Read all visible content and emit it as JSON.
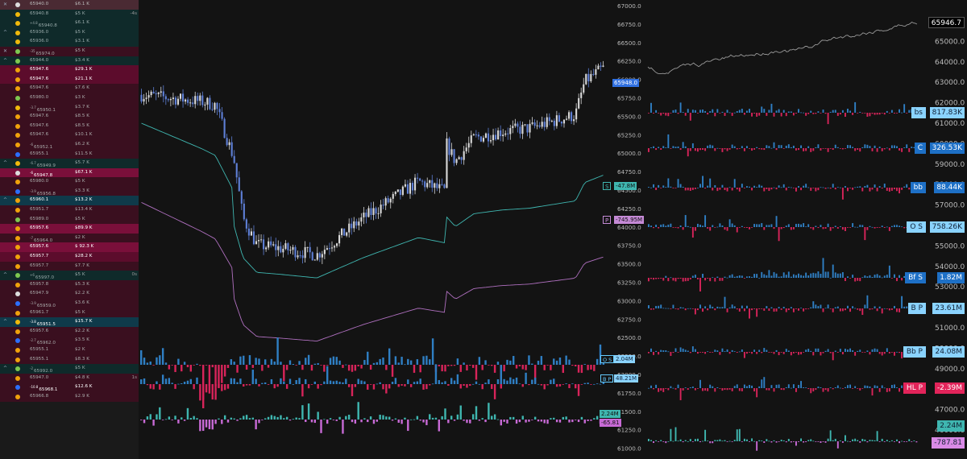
{
  "tape": {
    "rows": [
      {
        "chev": "✕",
        "icon": "x",
        "price": "65940.0",
        "size": "$6.1 K",
        "tag": "",
        "lev": "",
        "bg": "#4a2a33",
        "col": "#bbb"
      },
      {
        "chev": "",
        "icon": "coin",
        "price": "65940.8",
        "size": "$5 K",
        "tag": "-4s",
        "lev": "",
        "bg": "#0f2a2a",
        "col": "#9aa"
      },
      {
        "chev": "",
        "icon": "coin",
        "price": "65940.8",
        "size": "$6.1 K",
        "tag": "",
        "lev": "+4.8",
        "bg": "#0f2a2a",
        "col": "#9aa"
      },
      {
        "chev": "^",
        "icon": "coin",
        "price": "65936.0",
        "size": "$5 K",
        "tag": "",
        "lev": "",
        "bg": "#0f2a2a",
        "col": "#9aa"
      },
      {
        "chev": "",
        "icon": "coin",
        "price": "65936.0",
        "size": "$3.1 K",
        "tag": "",
        "lev": "",
        "bg": "#0f2a2a",
        "col": "#9aa"
      },
      {
        "chev": "✕",
        "icon": "leaf",
        "price": "65974.0",
        "size": "$5 K",
        "tag": "",
        "lev": "-35",
        "bg": "#3a0f1f",
        "col": "#aaa"
      },
      {
        "chev": "^",
        "icon": "leaf",
        "price": "65944.0",
        "size": "$3.4 K",
        "tag": "",
        "lev": "",
        "bg": "#0f2a2a",
        "col": "#9aa"
      },
      {
        "chev": "",
        "icon": "bin",
        "price": "65947.6",
        "size": "$29.1 K",
        "tag": "",
        "lev": "",
        "bg": "#5c0c2c",
        "col": "#fff"
      },
      {
        "chev": "",
        "icon": "bin",
        "price": "65947.6",
        "size": "$21.1 K",
        "tag": "",
        "lev": "",
        "bg": "#5c0c2c",
        "col": "#fff"
      },
      {
        "chev": "",
        "icon": "bin",
        "price": "65947.6",
        "size": "$7.6 K",
        "tag": "",
        "lev": "",
        "bg": "#3a0f1f",
        "col": "#aaa"
      },
      {
        "chev": "",
        "icon": "leaf",
        "price": "65980.0",
        "size": "$3 K",
        "tag": "",
        "lev": "",
        "bg": "#3a0f1f",
        "col": "#aaa"
      },
      {
        "chev": "",
        "icon": "coin",
        "price": "65950.1",
        "size": "$3.7 K",
        "tag": "",
        "lev": "-3.7",
        "bg": "#3a0f1f",
        "col": "#aaa"
      },
      {
        "chev": "",
        "icon": "bin",
        "price": "65947.6",
        "size": "$8.5 K",
        "tag": "",
        "lev": "",
        "bg": "#3a0f1f",
        "col": "#aaa"
      },
      {
        "chev": "",
        "icon": "bin",
        "price": "65947.6",
        "size": "$8.5 K",
        "tag": "",
        "lev": "",
        "bg": "#3a0f1f",
        "col": "#aaa"
      },
      {
        "chev": "",
        "icon": "bin",
        "price": "65947.6",
        "size": "$10.1 K",
        "tag": "",
        "lev": "",
        "bg": "#3a0f1f",
        "col": "#aaa"
      },
      {
        "chev": "",
        "icon": "bin",
        "price": "65952.1",
        "size": "$6.2 K",
        "tag": "",
        "lev": "-6",
        "bg": "#3a0f1f",
        "col": "#aaa"
      },
      {
        "chev": "",
        "icon": "cb",
        "price": "65955.1",
        "size": "$11.5 K",
        "tag": "",
        "lev": "",
        "bg": "#3a0f1f",
        "col": "#aaa"
      },
      {
        "chev": "^",
        "icon": "coin",
        "price": "65949.9",
        "size": "$5.7 K",
        "tag": "",
        "lev": "-6.7",
        "bg": "#0f2a2a",
        "col": "#9aa"
      },
      {
        "chev": "",
        "icon": "x",
        "price": "65947.8",
        "size": "$67.1 K",
        "tag": "",
        "lev": "-6",
        "bg": "#7a0f3a",
        "col": "#fff"
      },
      {
        "chev": "",
        "icon": "bin",
        "price": "65980.0",
        "size": "$5 K",
        "tag": "",
        "lev": "",
        "bg": "#3a0f1f",
        "col": "#aaa"
      },
      {
        "chev": "",
        "icon": "cb",
        "price": "65956.8",
        "size": "$3.3 K",
        "tag": "",
        "lev": "-3.9",
        "bg": "#3a0f1f",
        "col": "#aaa"
      },
      {
        "chev": "^",
        "icon": "bin",
        "price": "65960.1",
        "size": "$13.2 K",
        "tag": "",
        "lev": "",
        "bg": "#0f3a4a",
        "col": "#fff"
      },
      {
        "chev": "",
        "icon": "bin",
        "price": "65951.7",
        "size": "$13.4 K",
        "tag": "",
        "lev": "",
        "bg": "#3a0f1f",
        "col": "#aaa"
      },
      {
        "chev": "",
        "icon": "leaf",
        "price": "65989.0",
        "size": "$5 K",
        "tag": "",
        "lev": "",
        "bg": "#3a0f1f",
        "col": "#aaa"
      },
      {
        "chev": "",
        "icon": "bin",
        "price": "65957.6",
        "size": "$89.9 K",
        "tag": "",
        "lev": "",
        "bg": "#7a0f3a",
        "col": "#fff"
      },
      {
        "chev": "",
        "icon": "bin",
        "price": "65964.0",
        "size": "$2 K",
        "tag": "",
        "lev": "-7",
        "bg": "#3a0f1f",
        "col": "#aaa"
      },
      {
        "chev": "",
        "icon": "bin",
        "price": "65957.6",
        "size": "$ 92.3 K",
        "tag": "",
        "lev": "",
        "bg": "#7a0f3a",
        "col": "#fff"
      },
      {
        "chev": "",
        "icon": "bin",
        "price": "65957.7",
        "size": "$28.2 K",
        "tag": "",
        "lev": "",
        "bg": "#5c0c2c",
        "col": "#fff"
      },
      {
        "chev": "",
        "icon": "bin",
        "price": "65957.7",
        "size": "$7.7 K",
        "tag": "",
        "lev": "",
        "bg": "#3a0f1f",
        "col": "#aaa"
      },
      {
        "chev": "^",
        "icon": "leaf",
        "price": "65997.0",
        "size": "$5 K",
        "tag": "0s",
        "lev": "+6",
        "bg": "#0f2a2a",
        "col": "#9aa"
      },
      {
        "chev": "",
        "icon": "bin",
        "price": "65957.8",
        "size": "$5.3 K",
        "tag": "",
        "lev": "",
        "bg": "#3a0f1f",
        "col": "#aaa"
      },
      {
        "chev": "",
        "icon": "x",
        "price": "65947.9",
        "size": "$2.2 K",
        "tag": "",
        "lev": "",
        "bg": "#3a0f1f",
        "col": "#aaa"
      },
      {
        "chev": "",
        "icon": "cb",
        "price": "65959.0",
        "size": "$3.6 K",
        "tag": "",
        "lev": "-3.9",
        "bg": "#3a0f1f",
        "col": "#aaa"
      },
      {
        "chev": "",
        "icon": "bin",
        "price": "65961.7",
        "size": "$5 K",
        "tag": "",
        "lev": "",
        "bg": "#3a0f1f",
        "col": "#aaa"
      },
      {
        "chev": "^",
        "icon": "coin",
        "price": "65951.5",
        "size": "$15.7 K",
        "tag": "",
        "lev": "-3.8",
        "bg": "#0f3a4a",
        "col": "#fff"
      },
      {
        "chev": "",
        "icon": "bin",
        "price": "65957.6",
        "size": "$2.2 K",
        "tag": "",
        "lev": "",
        "bg": "#3a0f1f",
        "col": "#aaa"
      },
      {
        "chev": "",
        "icon": "cb",
        "price": "65962.0",
        "size": "$3.5 K",
        "tag": "",
        "lev": "-2.7",
        "bg": "#3a0f1f",
        "col": "#aaa"
      },
      {
        "chev": "",
        "icon": "bin",
        "price": "65955.1",
        "size": "$2 K",
        "tag": "",
        "lev": "",
        "bg": "#3a0f1f",
        "col": "#aaa"
      },
      {
        "chev": "",
        "icon": "bin",
        "price": "65955.1",
        "size": "$8.3 K",
        "tag": "",
        "lev": "",
        "bg": "#3a0f1f",
        "col": "#aaa"
      },
      {
        "chev": "^",
        "icon": "leaf",
        "price": "65992.0",
        "size": "$5 K",
        "tag": "",
        "lev": "-2",
        "bg": "#0f2a2a",
        "col": "#9aa"
      },
      {
        "chev": "",
        "icon": "bin",
        "price": "65947.0",
        "size": "$4.8 K",
        "tag": "1s",
        "lev": "",
        "bg": "#3a0f1f",
        "col": "#aaa"
      },
      {
        "chev": "",
        "icon": "cb",
        "price": "65968.1",
        "size": "$12.6 K",
        "tag": "",
        "lev": "-10.8",
        "bg": "#3a0f1f",
        "col": "#fff"
      },
      {
        "chev": "",
        "icon": "bin",
        "price": "65966.8",
        "size": "$2.9 K",
        "tag": "",
        "lev": "",
        "bg": "#3a0f1f",
        "col": "#aaa"
      }
    ]
  },
  "main": {
    "price_axis": [
      "67000.0",
      "66750.0",
      "66500.0",
      "66250.0",
      "66000.0",
      "65750.0",
      "65500.0",
      "65250.0",
      "65000.0",
      "64750.0",
      "64500.0",
      "64250.0",
      "64000.0",
      "63750.0",
      "63500.0",
      "63250.0",
      "63000.0",
      "62750.0",
      "62500.0",
      "62250.0",
      "62000.0",
      "61750.0",
      "61500.0",
      "61250.0",
      "61000.0"
    ],
    "last_price": "65948.0",
    "line_badges": [
      {
        "label": "S",
        "value": "-47.8M",
        "color": "#3fb6b0"
      },
      {
        "label": "P",
        "value": "-745.95M",
        "color": "#c58ad6"
      }
    ],
    "bar_badges": [
      {
        "label": "O S",
        "value": "2.04M"
      },
      {
        "label": "B P",
        "value": "48.21M"
      }
    ],
    "bottom_badges": [
      {
        "value": "2.24M",
        "color": "#3fb6b0"
      },
      {
        "value": "-65.81",
        "color": "#c86ad6"
      }
    ]
  },
  "right": {
    "price_axis": [
      "65946.7",
      "65000.0",
      "64000.0",
      "63000.0",
      "62000.0",
      "61000.0",
      "60000.0",
      "59000.0",
      "58000.0",
      "57000.0",
      "56000.0",
      "55000.0",
      "54000.0",
      "53000.0",
      "52000.0",
      "51000.0",
      "50000.0",
      "49000.0",
      "48000.0",
      "47000.0",
      "46000.0"
    ],
    "panels": [
      {
        "label": "bs",
        "value": "817.83K",
        "label_bg": "#8ad3ff",
        "label_col": "#123",
        "val_bg": "#8ad3ff",
        "val_col": "#123"
      },
      {
        "label": "C",
        "value": "326.53K",
        "label_bg": "#1e70c6",
        "label_col": "#fff",
        "val_bg": "#1e70c6",
        "val_col": "#fff"
      },
      {
        "label": "bb",
        "value": "88.44K",
        "label_bg": "#1e70c6",
        "label_col": "#fff",
        "val_bg": "#1e70c6",
        "val_col": "#fff"
      },
      {
        "label": "O S",
        "value": "758.26K",
        "label_bg": "#8ad3ff",
        "label_col": "#123",
        "val_bg": "#8ad3ff",
        "val_col": "#123"
      },
      {
        "label": "Bf S",
        "value": "1.82M",
        "label_bg": "#1e70c6",
        "label_col": "#fff",
        "val_bg": "#1e70c6",
        "val_col": "#fff"
      },
      {
        "label": "B P",
        "value": "23.61M",
        "label_bg": "#8ad3ff",
        "label_col": "#123",
        "val_bg": "#8ad3ff",
        "val_col": "#123"
      },
      {
        "label": "Bb P",
        "value": "24.08M",
        "label_bg": "#8ad3ff",
        "label_col": "#123",
        "val_bg": "#8ad3ff",
        "val_col": "#123"
      },
      {
        "label": "HL P",
        "value": "-2.39M",
        "label_bg": "#e2245a",
        "label_col": "#fff",
        "val_bg": "#e2245a",
        "val_col": "#fff"
      }
    ],
    "bottom_badges": [
      {
        "value": "2.24M",
        "color": "#3fb6b0",
        "text": "#123"
      },
      {
        "value": "-787.81",
        "color": "#d98ae6",
        "text": "#123"
      }
    ]
  },
  "colors": {
    "up": "#d8d8d8",
    "down": "#5e7fd6",
    "buy": "#2f7fc4",
    "sell": "#d8245a",
    "teal": "#3fb6b0",
    "pink": "#b070c0"
  }
}
